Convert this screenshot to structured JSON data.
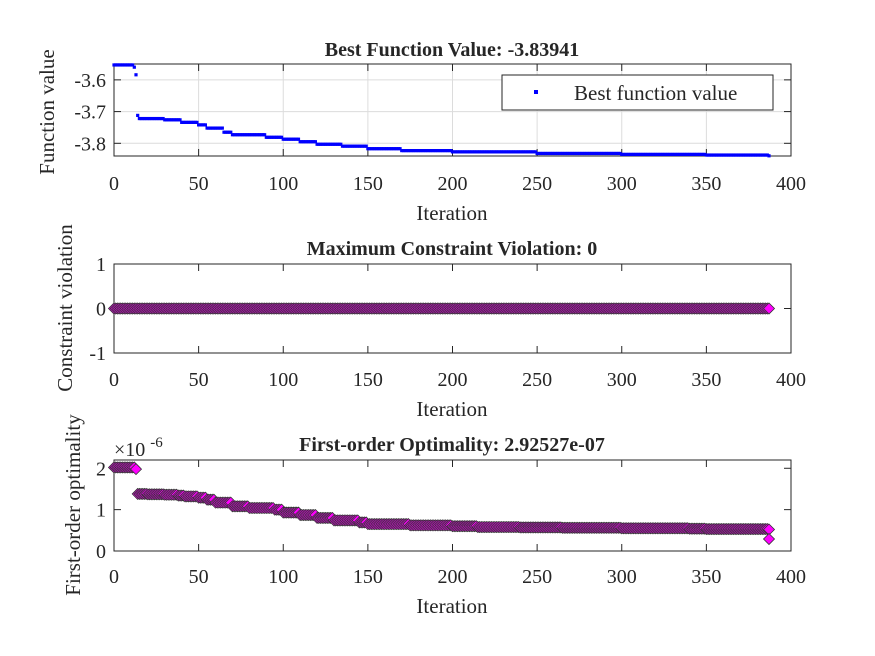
{
  "chart_data": [
    {
      "type": "scatter",
      "title": "Best Function Value: -3.83941",
      "xlabel": "Iteration",
      "ylabel": "Function value",
      "xlim": [
        0,
        400
      ],
      "ylim": [
        -3.84,
        -3.55
      ],
      "xticks": [
        "0",
        "50",
        "100",
        "150",
        "200",
        "250",
        "300",
        "350",
        "400"
      ],
      "yticks": [
        "-3.6",
        "-3.7",
        "-3.8"
      ],
      "ytick_values": [
        -3.6,
        -3.7,
        -3.8
      ],
      "grid": true,
      "legend": "top-right",
      "series": [
        {
          "name": "Best function value",
          "color": "#0000ff",
          "marker": "point",
          "x": [
            0,
            10,
            12,
            13,
            14,
            15,
            30,
            40,
            50,
            55,
            65,
            70,
            90,
            100,
            110,
            120,
            135,
            150,
            170,
            200,
            250,
            300,
            350,
            387
          ],
          "y": [
            -3.553,
            -3.553,
            -3.56,
            -3.584,
            -3.712,
            -3.722,
            -3.726,
            -3.734,
            -3.742,
            -3.752,
            -3.765,
            -3.773,
            -3.781,
            -3.787,
            -3.795,
            -3.803,
            -3.809,
            -3.817,
            -3.823,
            -3.827,
            -3.832,
            -3.835,
            -3.837,
            -3.8394
          ]
        }
      ]
    },
    {
      "type": "scatter",
      "title": "Maximum Constraint Violation: 0",
      "xlabel": "Iteration",
      "ylabel": "Constraint violation",
      "xlim": [
        0,
        400
      ],
      "ylim": [
        -1,
        1
      ],
      "xticks": [
        "0",
        "50",
        "100",
        "150",
        "200",
        "250",
        "300",
        "350",
        "400"
      ],
      "yticks": [
        "1",
        "0",
        "-1"
      ],
      "ytick_values": [
        1,
        0,
        -1
      ],
      "grid": false,
      "series": [
        {
          "color": "#ff00ff",
          "marker": "diamond",
          "x": [
            0,
            387
          ],
          "y": [
            0,
            0
          ]
        }
      ]
    },
    {
      "type": "scatter",
      "title": "First-order Optimality: 2.92527e-07",
      "xlabel": "Iteration",
      "ylabel": "First-order optimality",
      "exponent_label_base": "×10",
      "exponent_label_power": "-6",
      "xlim": [
        0,
        400
      ],
      "ylim": [
        0,
        2.2
      ],
      "xticks": [
        "0",
        "50",
        "100",
        "150",
        "200",
        "250",
        "300",
        "350",
        "400"
      ],
      "yticks": [
        "2",
        "1",
        "0"
      ],
      "ytick_values": [
        2,
        1,
        0
      ],
      "grid": false,
      "series": [
        {
          "color": "#ff00ff",
          "marker": "diamond",
          "x": [
            0,
            13,
            14,
            20,
            30,
            38,
            42,
            50,
            55,
            60,
            70,
            80,
            95,
            100,
            110,
            120,
            130,
            145,
            150,
            175,
            200,
            215,
            240,
            265,
            300,
            340,
            350,
            387
          ],
          "y": [
            2.02,
            1.98,
            1.38,
            1.37,
            1.36,
            1.34,
            1.32,
            1.29,
            1.24,
            1.17,
            1.08,
            1.04,
            1.0,
            0.93,
            0.87,
            0.8,
            0.74,
            0.69,
            0.65,
            0.62,
            0.6,
            0.58,
            0.57,
            0.56,
            0.55,
            0.54,
            0.53,
            0.52
          ]
        }
      ],
      "extra_points": [
        {
          "x": 387,
          "y": 0.29
        }
      ]
    }
  ]
}
